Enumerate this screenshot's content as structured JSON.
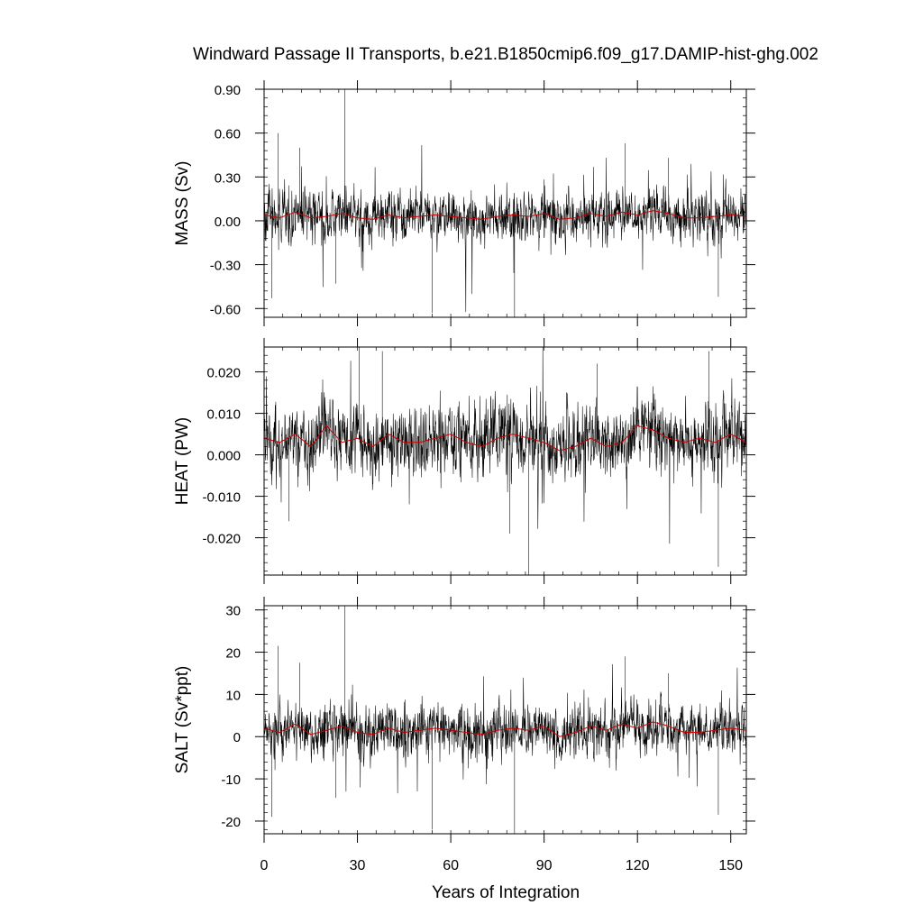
{
  "figure": {
    "title": "Windward Passage II Transports, b.e21.B1850cmip6.f09_g17.DAMIP-hist-ghg.002",
    "xlabel": "Years of Integration",
    "xlim": [
      0,
      155
    ],
    "xticks": [
      0,
      30,
      60,
      90,
      120,
      150
    ],
    "xtick_labels": [
      "0",
      "30",
      "60",
      "90",
      "120",
      "150"
    ]
  },
  "chart_data": [
    {
      "type": "line",
      "ylabel": "MASS (Sv)",
      "ylim": [
        -0.66,
        0.9
      ],
      "yticks": [
        -0.6,
        -0.3,
        0.0,
        0.3,
        0.6,
        0.9
      ],
      "ytick_labels": [
        "-0.60",
        "-0.30",
        "0.00",
        "0.30",
        "0.60",
        "0.90"
      ],
      "x_range": [
        0,
        155
      ],
      "raw": {
        "name": "",
        "color": "#000000",
        "mean": 0.03,
        "noise_sd": 0.085,
        "spikes": [
          [
            4.5,
            0.6
          ],
          [
            2.5,
            -0.53
          ],
          [
            26,
            0.91
          ],
          [
            54,
            -0.63
          ],
          [
            80.5,
            -0.66
          ],
          [
            116,
            0.53
          ],
          [
            146,
            -0.52
          ],
          [
            23,
            -0.43
          ],
          [
            11.5,
            0.5
          ],
          [
            130,
            0.43
          ]
        ]
      },
      "smooth": {
        "name": "",
        "color": "#cc0000",
        "x": [
          0,
          5,
          10,
          15,
          20,
          25,
          30,
          35,
          40,
          45,
          50,
          55,
          60,
          65,
          70,
          75,
          80,
          85,
          90,
          95,
          100,
          105,
          110,
          115,
          120,
          125,
          130,
          135,
          140,
          145,
          150,
          155
        ],
        "y": [
          0.04,
          0.02,
          0.06,
          0.02,
          0.03,
          0.05,
          0.02,
          0.01,
          0.04,
          0.02,
          0.03,
          0.04,
          0.03,
          0.02,
          0.01,
          0.03,
          0.04,
          0.03,
          0.05,
          0.01,
          0.02,
          0.05,
          0.03,
          0.06,
          0.04,
          0.07,
          0.05,
          0.02,
          0.02,
          0.03,
          0.04,
          0.03
        ]
      }
    },
    {
      "type": "line",
      "ylabel": "HEAT (PW)",
      "ylim": [
        -0.029,
        0.026
      ],
      "yticks": [
        -0.02,
        -0.01,
        0.0,
        0.01,
        0.02
      ],
      "ytick_labels": [
        "-0.020",
        "-0.010",
        "0.000",
        "0.010",
        "0.020"
      ],
      "x_range": [
        0,
        155
      ],
      "raw": {
        "name": "",
        "color": "#000000",
        "mean": 0.0035,
        "noise_sd": 0.0042,
        "spikes": [
          [
            30.5,
            0.026
          ],
          [
            38,
            0.025
          ],
          [
            85,
            -0.029
          ],
          [
            146,
            -0.027
          ],
          [
            143,
            0.025
          ],
          [
            8,
            -0.016
          ],
          [
            79,
            -0.019
          ],
          [
            107,
            0.022
          ]
        ]
      },
      "smooth": {
        "name": "",
        "color": "#cc0000",
        "x": [
          0,
          5,
          10,
          15,
          20,
          25,
          30,
          35,
          40,
          45,
          50,
          55,
          60,
          65,
          70,
          75,
          80,
          85,
          90,
          95,
          100,
          105,
          110,
          115,
          120,
          125,
          130,
          135,
          140,
          145,
          150,
          155
        ],
        "y": [
          0.004,
          0.003,
          0.005,
          0.002,
          0.007,
          0.003,
          0.004,
          0.002,
          0.005,
          0.003,
          0.003,
          0.004,
          0.005,
          0.003,
          0.002,
          0.004,
          0.005,
          0.004,
          0.003,
          0.001,
          0.002,
          0.004,
          0.002,
          0.003,
          0.007,
          0.006,
          0.004,
          0.003,
          0.004,
          0.003,
          0.005,
          0.003
        ]
      }
    },
    {
      "type": "line",
      "ylabel": "SALT (Sv*ppt)",
      "ylim": [
        -23,
        31
      ],
      "yticks": [
        -20,
        -10,
        0,
        10,
        20,
        30
      ],
      "ytick_labels": [
        "-20",
        "-10",
        "0",
        "10",
        "20",
        "30"
      ],
      "x_range": [
        0,
        155
      ],
      "raw": {
        "name": "",
        "color": "#000000",
        "mean": 1.0,
        "noise_sd": 3.0,
        "spikes": [
          [
            4.5,
            21.5
          ],
          [
            2.5,
            -19
          ],
          [
            26,
            31
          ],
          [
            54,
            -22
          ],
          [
            80.5,
            -23
          ],
          [
            116,
            19
          ],
          [
            146,
            -18.5
          ],
          [
            23,
            -14.5
          ],
          [
            11.5,
            17.5
          ],
          [
            130,
            15
          ]
        ]
      },
      "smooth": {
        "name": "",
        "color": "#cc0000",
        "x": [
          0,
          5,
          10,
          15,
          20,
          25,
          30,
          35,
          40,
          45,
          50,
          55,
          60,
          65,
          70,
          75,
          80,
          85,
          90,
          95,
          100,
          105,
          110,
          115,
          120,
          125,
          130,
          135,
          140,
          145,
          150,
          155
        ],
        "y": [
          2,
          1,
          3,
          0.5,
          1.5,
          2.5,
          1,
          0.5,
          2,
          1,
          1.5,
          2,
          1.5,
          1,
          0.5,
          1.5,
          2,
          1.5,
          2.5,
          0,
          1,
          2.5,
          1.5,
          3,
          2,
          3.5,
          2.5,
          1,
          1,
          1.5,
          2,
          1.5
        ]
      }
    }
  ]
}
